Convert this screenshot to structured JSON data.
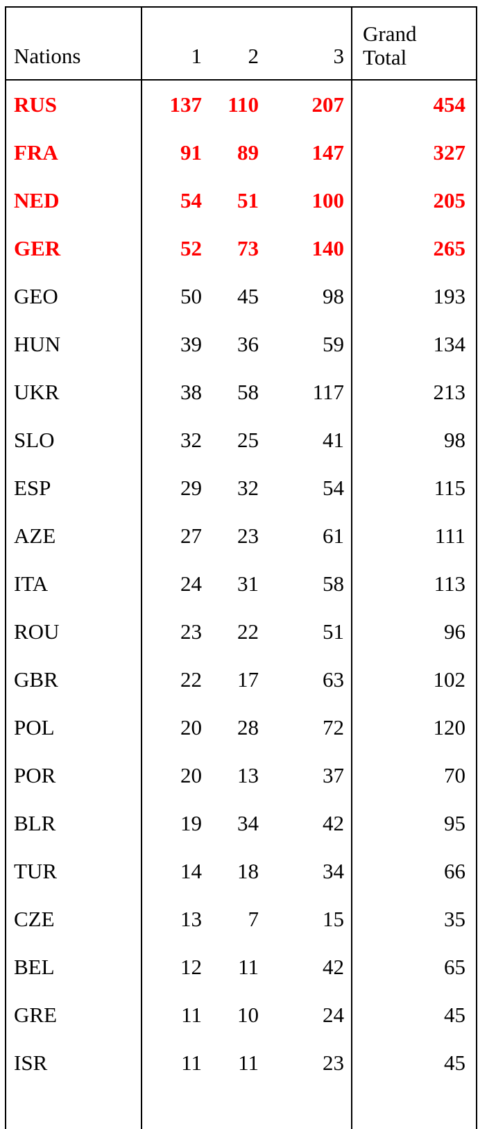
{
  "table": {
    "headers": {
      "nations": "Nations",
      "col1": "1",
      "col2": "2",
      "col3": "3",
      "grand_total_line1": "Grand",
      "grand_total_line2": "Total"
    },
    "highlight_color": "#ff0000",
    "rows": [
      {
        "nation": "RUS",
        "c1": "137",
        "c2": "110",
        "c3": "207",
        "total": "454",
        "highlight": true
      },
      {
        "nation": "FRA",
        "c1": "91",
        "c2": "89",
        "c3": "147",
        "total": "327",
        "highlight": true
      },
      {
        "nation": "NED",
        "c1": "54",
        "c2": "51",
        "c3": "100",
        "total": "205",
        "highlight": true
      },
      {
        "nation": "GER",
        "c1": "52",
        "c2": "73",
        "c3": "140",
        "total": "265",
        "highlight": true
      },
      {
        "nation": "GEO",
        "c1": "50",
        "c2": "45",
        "c3": "98",
        "total": "193",
        "highlight": false
      },
      {
        "nation": "HUN",
        "c1": "39",
        "c2": "36",
        "c3": "59",
        "total": "134",
        "highlight": false
      },
      {
        "nation": "UKR",
        "c1": "38",
        "c2": "58",
        "c3": "117",
        "total": "213",
        "highlight": false
      },
      {
        "nation": "SLO",
        "c1": "32",
        "c2": "25",
        "c3": "41",
        "total": "98",
        "highlight": false
      },
      {
        "nation": "ESP",
        "c1": "29",
        "c2": "32",
        "c3": "54",
        "total": "115",
        "highlight": false
      },
      {
        "nation": "AZE",
        "c1": "27",
        "c2": "23",
        "c3": "61",
        "total": "111",
        "highlight": false
      },
      {
        "nation": "ITA",
        "c1": "24",
        "c2": "31",
        "c3": "58",
        "total": "113",
        "highlight": false
      },
      {
        "nation": "ROU",
        "c1": "23",
        "c2": "22",
        "c3": "51",
        "total": "96",
        "highlight": false
      },
      {
        "nation": "GBR",
        "c1": "22",
        "c2": "17",
        "c3": "63",
        "total": "102",
        "highlight": false
      },
      {
        "nation": "POL",
        "c1": "20",
        "c2": "28",
        "c3": "72",
        "total": "120",
        "highlight": false
      },
      {
        "nation": "POR",
        "c1": "20",
        "c2": "13",
        "c3": "37",
        "total": "70",
        "highlight": false
      },
      {
        "nation": "BLR",
        "c1": "19",
        "c2": "34",
        "c3": "42",
        "total": "95",
        "highlight": false
      },
      {
        "nation": "TUR",
        "c1": "14",
        "c2": "18",
        "c3": "34",
        "total": "66",
        "highlight": false
      },
      {
        "nation": "CZE",
        "c1": "13",
        "c2": "7",
        "c3": "15",
        "total": "35",
        "highlight": false
      },
      {
        "nation": "BEL",
        "c1": "12",
        "c2": "11",
        "c3": "42",
        "total": "65",
        "highlight": false
      },
      {
        "nation": "GRE",
        "c1": "11",
        "c2": "10",
        "c3": "24",
        "total": "45",
        "highlight": false
      },
      {
        "nation": "ISR",
        "c1": "11",
        "c2": "11",
        "c3": "23",
        "total": "45",
        "highlight": false
      }
    ]
  }
}
